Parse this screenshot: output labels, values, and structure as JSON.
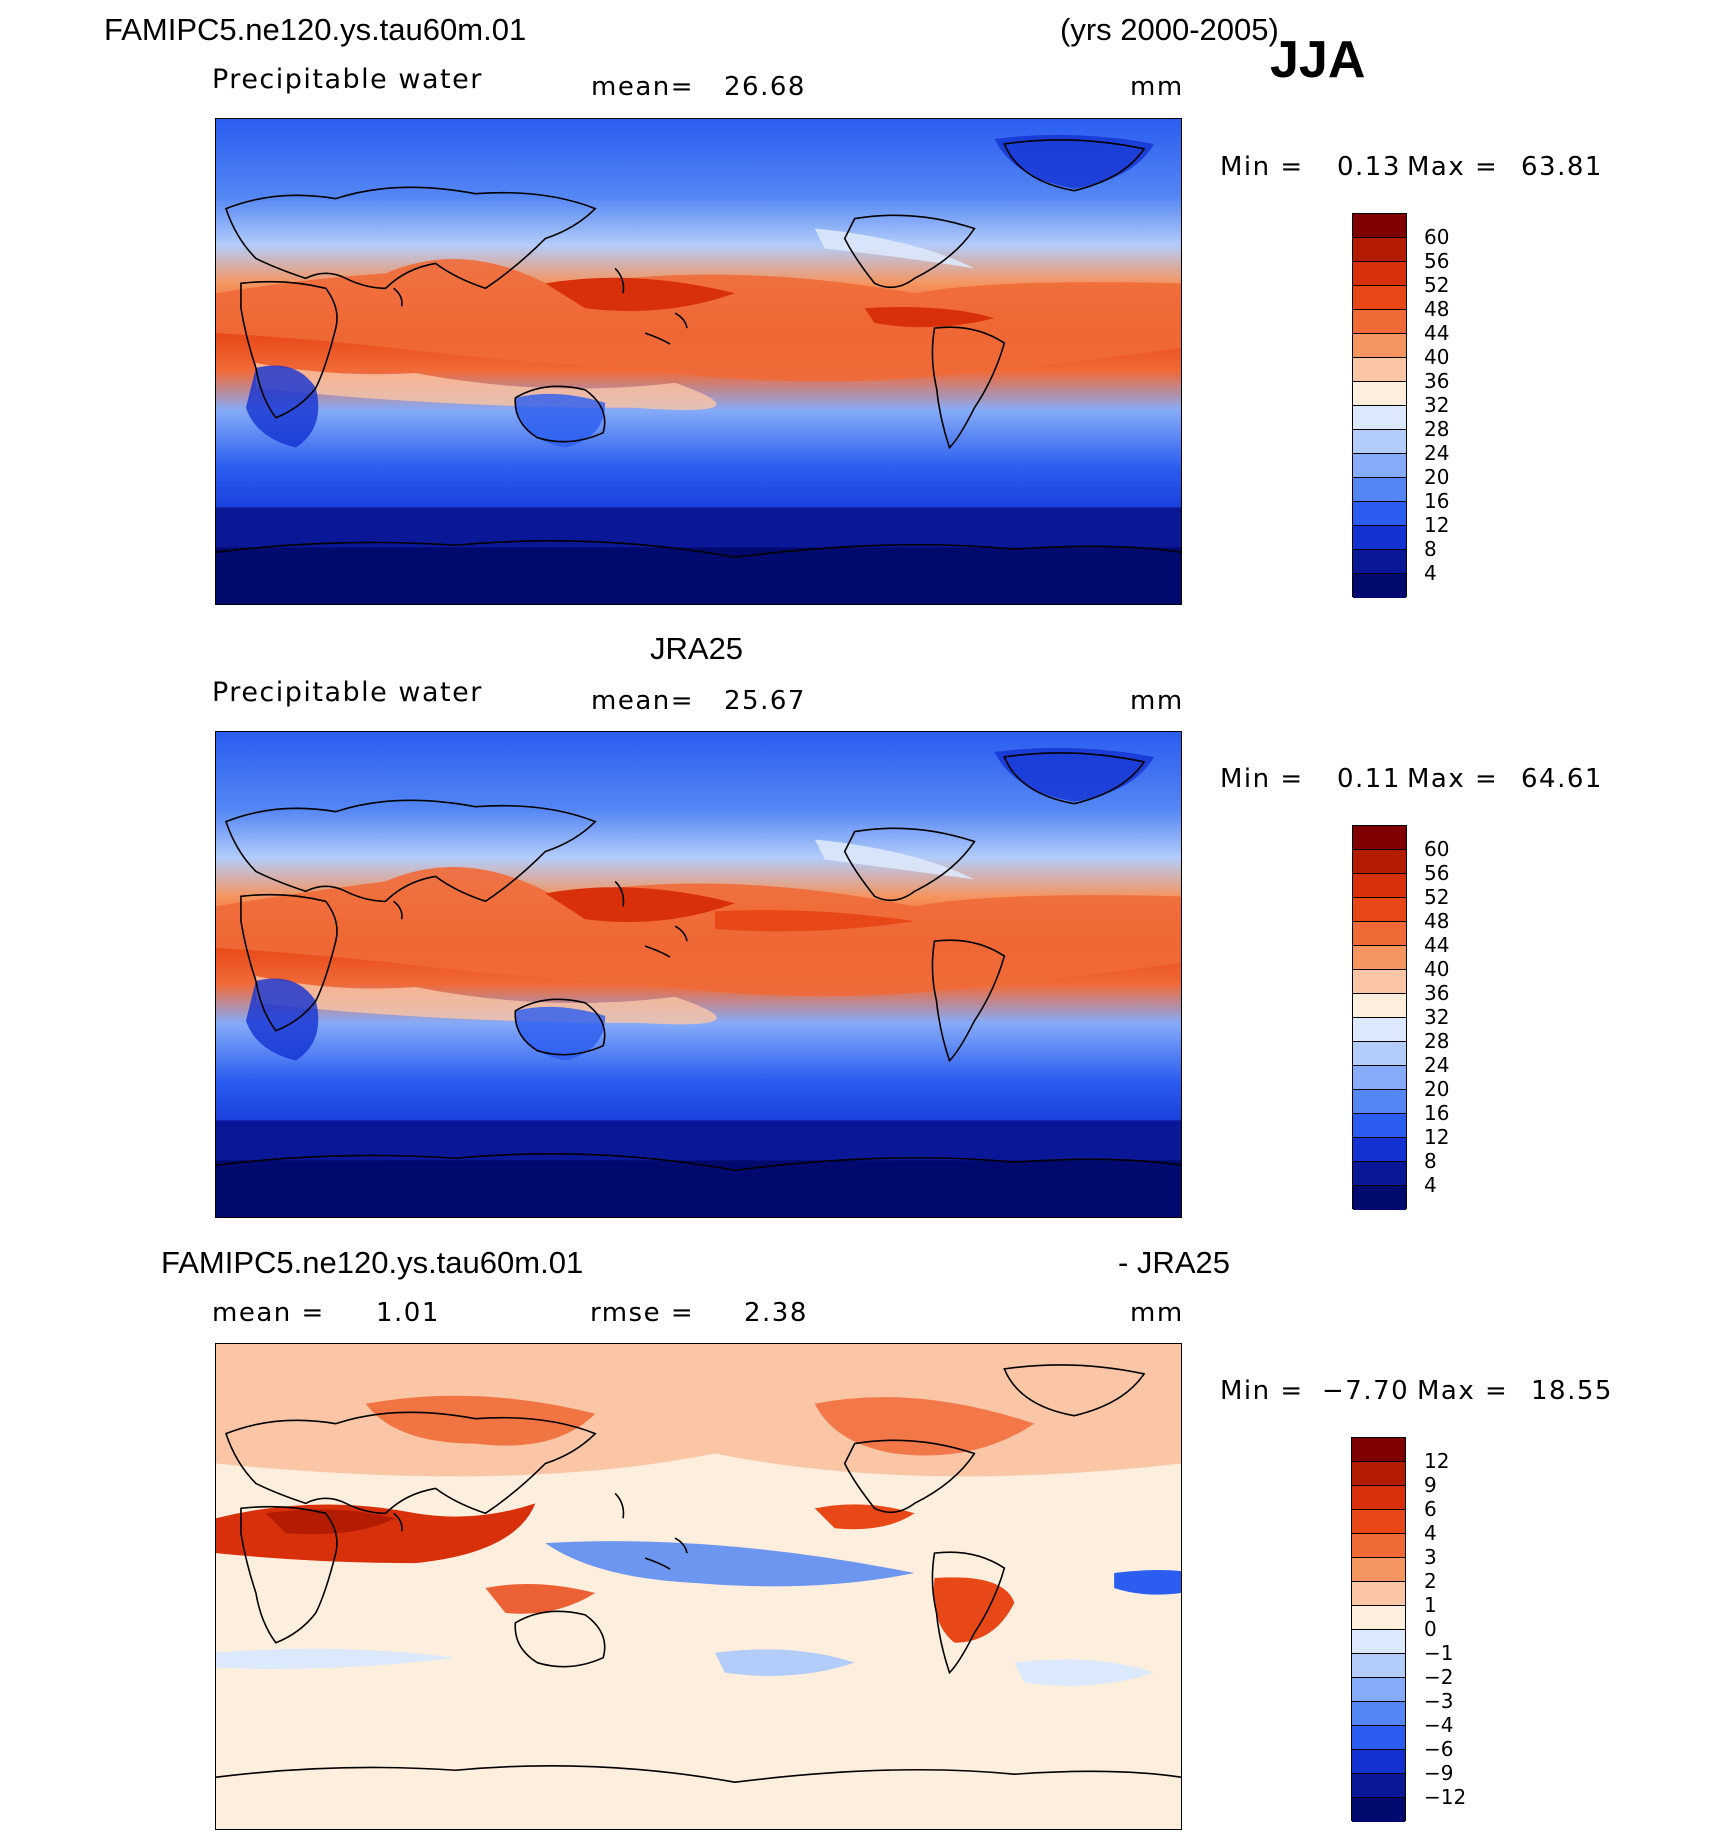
{
  "header": {
    "model_name": "FAMIPC5.ne120.ys.tau60m.01",
    "years": "(yrs 2000-2005)",
    "season": "JJA"
  },
  "panels": [
    {
      "id": "model",
      "variable": "Precipitable water",
      "mean_label": "mean=",
      "mean_value": "26.68",
      "units": "mm",
      "min_label": "Min =",
      "min_value": "0.13",
      "max_label": "Max =",
      "max_value": "63.81"
    },
    {
      "id": "obs",
      "title": "JRA25",
      "variable": "Precipitable water",
      "mean_label": "mean=",
      "mean_value": "25.67",
      "units": "mm",
      "min_label": "Min =",
      "min_value": "0.11",
      "max_label": "Max =",
      "max_value": "64.61"
    },
    {
      "id": "diff",
      "title_left": "FAMIPC5.ne120.ys.tau60m.01",
      "title_right": "- JRA25",
      "mean_label": "mean =",
      "mean_value": "1.01",
      "rmse_label": "rmse =",
      "rmse_value": "2.38",
      "units": "mm",
      "min_label": "Min =",
      "min_value": "−7.70",
      "max_label": "Max =",
      "max_value": "18.55"
    }
  ],
  "colorbars": {
    "absolute": {
      "labels": [
        "60",
        "56",
        "52",
        "48",
        "44",
        "40",
        "36",
        "32",
        "28",
        "24",
        "20",
        "16",
        "12",
        "8",
        "4"
      ],
      "colors": [
        "#7f0000",
        "#b41c00",
        "#d7300a",
        "#e84817",
        "#f06a38",
        "#f5955f",
        "#fac6a6",
        "#feeedd",
        "#dce8fb",
        "#b3ccfa",
        "#86abf8",
        "#5486f4",
        "#2a5df0",
        "#1432d2",
        "#0a1796",
        "#000a6e"
      ]
    },
    "difference": {
      "labels": [
        "12",
        "9",
        "6",
        "4",
        "3",
        "2",
        "1",
        "0",
        "−1",
        "−2",
        "−3",
        "−4",
        "−6",
        "−9",
        "−12"
      ],
      "colors": [
        "#7f0000",
        "#b41c00",
        "#d7300a",
        "#e84817",
        "#f06a38",
        "#f5955f",
        "#fac6a6",
        "#feeedd",
        "#dce8fb",
        "#b3ccfa",
        "#86abf8",
        "#5486f4",
        "#2a5df0",
        "#1432d2",
        "#0a1796",
        "#000a6e"
      ]
    }
  }
}
